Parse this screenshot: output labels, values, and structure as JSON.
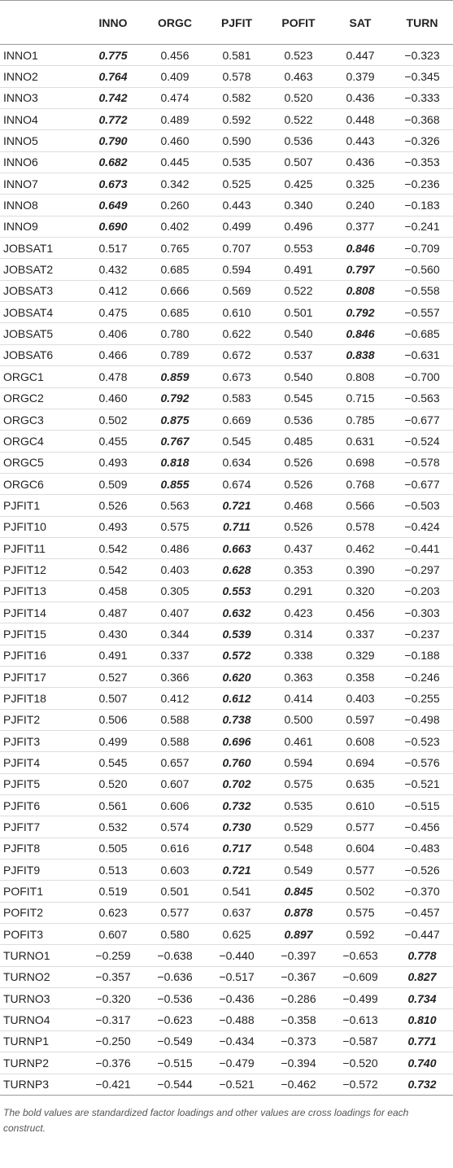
{
  "table": {
    "columns": [
      "INNO",
      "ORGC",
      "PJFIT",
      "POFIT",
      "SAT",
      "TURN"
    ],
    "rows": [
      {
        "label": "INNO1",
        "values": [
          "0.775",
          "0.456",
          "0.581",
          "0.523",
          "0.447",
          "−0.323"
        ],
        "bold": 0
      },
      {
        "label": "INNO2",
        "values": [
          "0.764",
          "0.409",
          "0.578",
          "0.463",
          "0.379",
          "−0.345"
        ],
        "bold": 0
      },
      {
        "label": "INNO3",
        "values": [
          "0.742",
          "0.474",
          "0.582",
          "0.520",
          "0.436",
          "−0.333"
        ],
        "bold": 0
      },
      {
        "label": "INNO4",
        "values": [
          "0.772",
          "0.489",
          "0.592",
          "0.522",
          "0.448",
          "−0.368"
        ],
        "bold": 0
      },
      {
        "label": "INNO5",
        "values": [
          "0.790",
          "0.460",
          "0.590",
          "0.536",
          "0.443",
          "−0.326"
        ],
        "bold": 0
      },
      {
        "label": "INNO6",
        "values": [
          "0.682",
          "0.445",
          "0.535",
          "0.507",
          "0.436",
          "−0.353"
        ],
        "bold": 0
      },
      {
        "label": "INNO7",
        "values": [
          "0.673",
          "0.342",
          "0.525",
          "0.425",
          "0.325",
          "−0.236"
        ],
        "bold": 0
      },
      {
        "label": "INNO8",
        "values": [
          "0.649",
          "0.260",
          "0.443",
          "0.340",
          "0.240",
          "−0.183"
        ],
        "bold": 0
      },
      {
        "label": "INNO9",
        "values": [
          "0.690",
          "0.402",
          "0.499",
          "0.496",
          "0.377",
          "−0.241"
        ],
        "bold": 0
      },
      {
        "label": "JOBSAT1",
        "values": [
          "0.517",
          "0.765",
          "0.707",
          "0.553",
          "0.846",
          "−0.709"
        ],
        "bold": 4
      },
      {
        "label": "JOBSAT2",
        "values": [
          "0.432",
          "0.685",
          "0.594",
          "0.491",
          "0.797",
          "−0.560"
        ],
        "bold": 4
      },
      {
        "label": "JOBSAT3",
        "values": [
          "0.412",
          "0.666",
          "0.569",
          "0.522",
          "0.808",
          "−0.558"
        ],
        "bold": 4
      },
      {
        "label": "JOBSAT4",
        "values": [
          "0.475",
          "0.685",
          "0.610",
          "0.501",
          "0.792",
          "−0.557"
        ],
        "bold": 4
      },
      {
        "label": "JOBSAT5",
        "values": [
          "0.406",
          "0.780",
          "0.622",
          "0.540",
          "0.846",
          "−0.685"
        ],
        "bold": 4
      },
      {
        "label": "JOBSAT6",
        "values": [
          "0.466",
          "0.789",
          "0.672",
          "0.537",
          "0.838",
          "−0.631"
        ],
        "bold": 4
      },
      {
        "label": "ORGC1",
        "values": [
          "0.478",
          "0.859",
          "0.673",
          "0.540",
          "0.808",
          "−0.700"
        ],
        "bold": 1
      },
      {
        "label": "ORGC2",
        "values": [
          "0.460",
          "0.792",
          "0.583",
          "0.545",
          "0.715",
          "−0.563"
        ],
        "bold": 1
      },
      {
        "label": "ORGC3",
        "values": [
          "0.502",
          "0.875",
          "0.669",
          "0.536",
          "0.785",
          "−0.677"
        ],
        "bold": 1
      },
      {
        "label": "ORGC4",
        "values": [
          "0.455",
          "0.767",
          "0.545",
          "0.485",
          "0.631",
          "−0.524"
        ],
        "bold": 1
      },
      {
        "label": "ORGC5",
        "values": [
          "0.493",
          "0.818",
          "0.634",
          "0.526",
          "0.698",
          "−0.578"
        ],
        "bold": 1
      },
      {
        "label": "ORGC6",
        "values": [
          "0.509",
          "0.855",
          "0.674",
          "0.526",
          "0.768",
          "−0.677"
        ],
        "bold": 1
      },
      {
        "label": "PJFIT1",
        "values": [
          "0.526",
          "0.563",
          "0.721",
          "0.468",
          "0.566",
          "−0.503"
        ],
        "bold": 2
      },
      {
        "label": "PJFIT10",
        "values": [
          "0.493",
          "0.575",
          "0.711",
          "0.526",
          "0.578",
          "−0.424"
        ],
        "bold": 2
      },
      {
        "label": "PJFIT11",
        "values": [
          "0.542",
          "0.486",
          "0.663",
          "0.437",
          "0.462",
          "−0.441"
        ],
        "bold": 2
      },
      {
        "label": "PJFIT12",
        "values": [
          "0.542",
          "0.403",
          "0.628",
          "0.353",
          "0.390",
          "−0.297"
        ],
        "bold": 2
      },
      {
        "label": "PJFIT13",
        "values": [
          "0.458",
          "0.305",
          "0.553",
          "0.291",
          "0.320",
          "−0.203"
        ],
        "bold": 2
      },
      {
        "label": "PJFIT14",
        "values": [
          "0.487",
          "0.407",
          "0.632",
          "0.423",
          "0.456",
          "−0.303"
        ],
        "bold": 2
      },
      {
        "label": "PJFIT15",
        "values": [
          "0.430",
          "0.344",
          "0.539",
          "0.314",
          "0.337",
          "−0.237"
        ],
        "bold": 2
      },
      {
        "label": "PJFIT16",
        "values": [
          "0.491",
          "0.337",
          "0.572",
          "0.338",
          "0.329",
          "−0.188"
        ],
        "bold": 2
      },
      {
        "label": "PJFIT17",
        "values": [
          "0.527",
          "0.366",
          "0.620",
          "0.363",
          "0.358",
          "−0.246"
        ],
        "bold": 2
      },
      {
        "label": "PJFIT18",
        "values": [
          "0.507",
          "0.412",
          "0.612",
          "0.414",
          "0.403",
          "−0.255"
        ],
        "bold": 2
      },
      {
        "label": "PJFIT2",
        "values": [
          "0.506",
          "0.588",
          "0.738",
          "0.500",
          "0.597",
          "−0.498"
        ],
        "bold": 2
      },
      {
        "label": "PJFIT3",
        "values": [
          "0.499",
          "0.588",
          "0.696",
          "0.461",
          "0.608",
          "−0.523"
        ],
        "bold": 2
      },
      {
        "label": "PJFIT4",
        "values": [
          "0.545",
          "0.657",
          "0.760",
          "0.594",
          "0.694",
          "−0.576"
        ],
        "bold": 2
      },
      {
        "label": "PJFIT5",
        "values": [
          "0.520",
          "0.607",
          "0.702",
          "0.575",
          "0.635",
          "−0.521"
        ],
        "bold": 2
      },
      {
        "label": "PJFIT6",
        "values": [
          "0.561",
          "0.606",
          "0.732",
          "0.535",
          "0.610",
          "−0.515"
        ],
        "bold": 2
      },
      {
        "label": "PJFIT7",
        "values": [
          "0.532",
          "0.574",
          "0.730",
          "0.529",
          "0.577",
          "−0.456"
        ],
        "bold": 2
      },
      {
        "label": "PJFIT8",
        "values": [
          "0.505",
          "0.616",
          "0.717",
          "0.548",
          "0.604",
          "−0.483"
        ],
        "bold": 2
      },
      {
        "label": "PJFIT9",
        "values": [
          "0.513",
          "0.603",
          "0.721",
          "0.549",
          "0.577",
          "−0.526"
        ],
        "bold": 2
      },
      {
        "label": "POFIT1",
        "values": [
          "0.519",
          "0.501",
          "0.541",
          "0.845",
          "0.502",
          "−0.370"
        ],
        "bold": 3
      },
      {
        "label": "POFIT2",
        "values": [
          "0.623",
          "0.577",
          "0.637",
          "0.878",
          "0.575",
          "−0.457"
        ],
        "bold": 3
      },
      {
        "label": "POFIT3",
        "values": [
          "0.607",
          "0.580",
          "0.625",
          "0.897",
          "0.592",
          "−0.447"
        ],
        "bold": 3
      },
      {
        "label": "TURNO1",
        "values": [
          "−0.259",
          "−0.638",
          "−0.440",
          "−0.397",
          "−0.653",
          "0.778"
        ],
        "bold": 5
      },
      {
        "label": "TURNO2",
        "values": [
          "−0.357",
          "−0.636",
          "−0.517",
          "−0.367",
          "−0.609",
          "0.827"
        ],
        "bold": 5
      },
      {
        "label": "TURNO3",
        "values": [
          "−0.320",
          "−0.536",
          "−0.436",
          "−0.286",
          "−0.499",
          "0.734"
        ],
        "bold": 5
      },
      {
        "label": "TURNO4",
        "values": [
          "−0.317",
          "−0.623",
          "−0.488",
          "−0.358",
          "−0.613",
          "0.810"
        ],
        "bold": 5
      },
      {
        "label": "TURNP1",
        "values": [
          "−0.250",
          "−0.549",
          "−0.434",
          "−0.373",
          "−0.587",
          "0.771"
        ],
        "bold": 5
      },
      {
        "label": "TURNP2",
        "values": [
          "−0.376",
          "−0.515",
          "−0.479",
          "−0.394",
          "−0.520",
          "0.740"
        ],
        "bold": 5
      },
      {
        "label": "TURNP3",
        "values": [
          "−0.421",
          "−0.544",
          "−0.521",
          "−0.462",
          "−0.572",
          "0.732"
        ],
        "bold": 5
      }
    ]
  },
  "footnote": "The bold values are standardized factor loadings and other values are cross loadings for each construct."
}
